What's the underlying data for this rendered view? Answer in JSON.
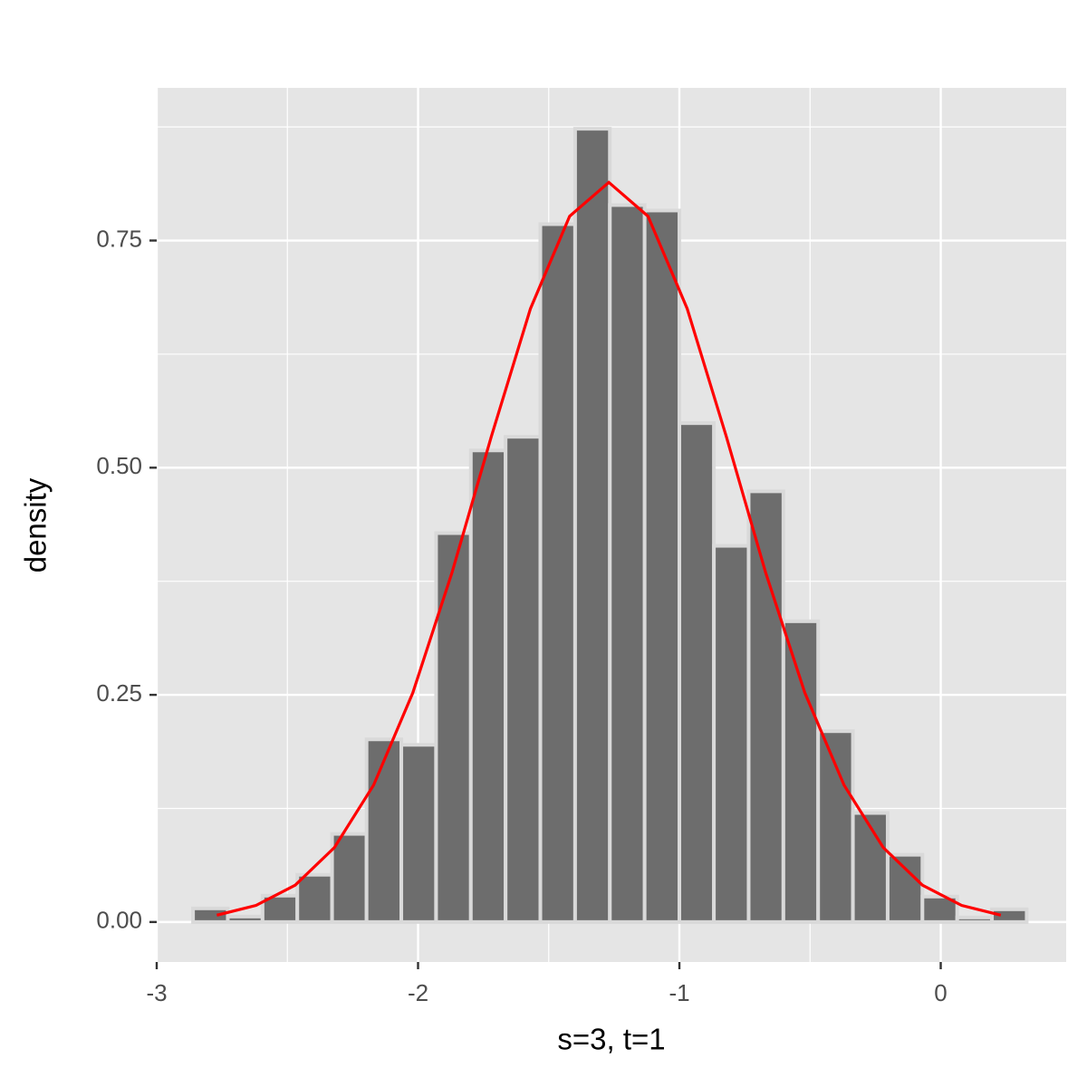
{
  "chart_data": {
    "type": "histogram",
    "x_label": "s=3, t=1",
    "y_label": "density",
    "bins": [
      -2.861,
      -2.728,
      -2.595,
      -2.462,
      -2.329,
      -2.197,
      -2.064,
      -1.931,
      -1.798,
      -1.665,
      -1.532,
      -1.399,
      -1.266,
      -1.133,
      -1.0,
      -0.868,
      -0.735,
      -0.602,
      -0.469,
      -0.336,
      -0.203,
      -0.07,
      0.063,
      0.196,
      0.329
    ],
    "values": [
      0.015,
      0.006,
      0.029,
      0.052,
      0.097,
      0.201,
      0.195,
      0.428,
      0.519,
      0.534,
      0.768,
      0.873,
      0.789,
      0.783,
      0.549,
      0.414,
      0.474,
      0.331,
      0.21,
      0.12,
      0.074,
      0.028,
      0.005,
      0.014
    ],
    "color": "#6d6d6d",
    "edge_color": "#d9d9d9",
    "curve": {
      "color": "#ff0000",
      "x": [
        -2.77,
        -2.62,
        -2.47,
        -2.32,
        -2.17,
        -2.02,
        -1.87,
        -1.72,
        -1.57,
        -1.42,
        -1.27,
        -1.12,
        -0.97,
        -0.82,
        -0.67,
        -0.52,
        -0.37,
        -0.22,
        -0.07,
        0.08,
        0.23
      ],
      "values": [
        0.0075,
        0.0183,
        0.0406,
        0.082,
        0.1507,
        0.2523,
        0.3846,
        0.5339,
        0.6749,
        0.7767,
        0.814,
        0.7767,
        0.6749,
        0.5339,
        0.3846,
        0.2523,
        0.1507,
        0.082,
        0.0406,
        0.0183,
        0.0075
      ]
    },
    "xlim": [
      -3.0,
      0.48
    ],
    "ylim": [
      -0.044,
      0.918
    ],
    "xticks": [
      -3,
      -2,
      -1,
      0
    ],
    "yticks": [
      {
        "value": 0,
        "label": "0.00"
      },
      0.25,
      {
        "value": 0.5,
        "label": "0.50"
      },
      0.75
    ],
    "minor_xticks": [
      -2.5,
      -1.5,
      -0.5
    ],
    "minor_yticks": [
      0.125,
      0.375,
      0.625,
      0.875
    ],
    "grid": true
  }
}
